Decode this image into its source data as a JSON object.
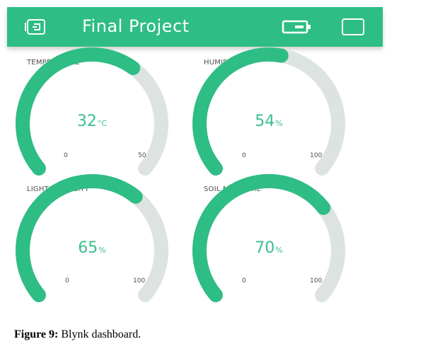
{
  "app": {
    "title": "Final Project",
    "accent": "#2ebd85",
    "icons": [
      "device-icon",
      "battery-icon",
      "square-icon"
    ]
  },
  "gauges": [
    {
      "label": "TEMPERATURE",
      "value": 32,
      "value_text": "32",
      "unit": "°C",
      "min": "0",
      "max": "50",
      "min_num": 0,
      "max_num": 50
    },
    {
      "label": "HUMIDITY",
      "value": 54,
      "value_text": "54",
      "unit": "%",
      "min": "0",
      "max": "100",
      "min_num": 0,
      "max_num": 100
    },
    {
      "label": "LIGHT INTENSITY",
      "value": 65,
      "value_text": "65",
      "unit": "%",
      "min": "0",
      "max": "100",
      "min_num": 0,
      "max_num": 100
    },
    {
      "label": "SOIL MOISTURE",
      "value": 70,
      "value_text": "70",
      "unit": "%",
      "min": "0",
      "max": "100",
      "min_num": 0,
      "max_num": 100
    }
  ],
  "colors": {
    "gauge_fill": "#2ebd85",
    "gauge_track": "#dde3e0",
    "value_text": "#3bbf8c"
  },
  "caption": {
    "figure": "Figure 9:",
    "text": " Blynk dashboard."
  }
}
